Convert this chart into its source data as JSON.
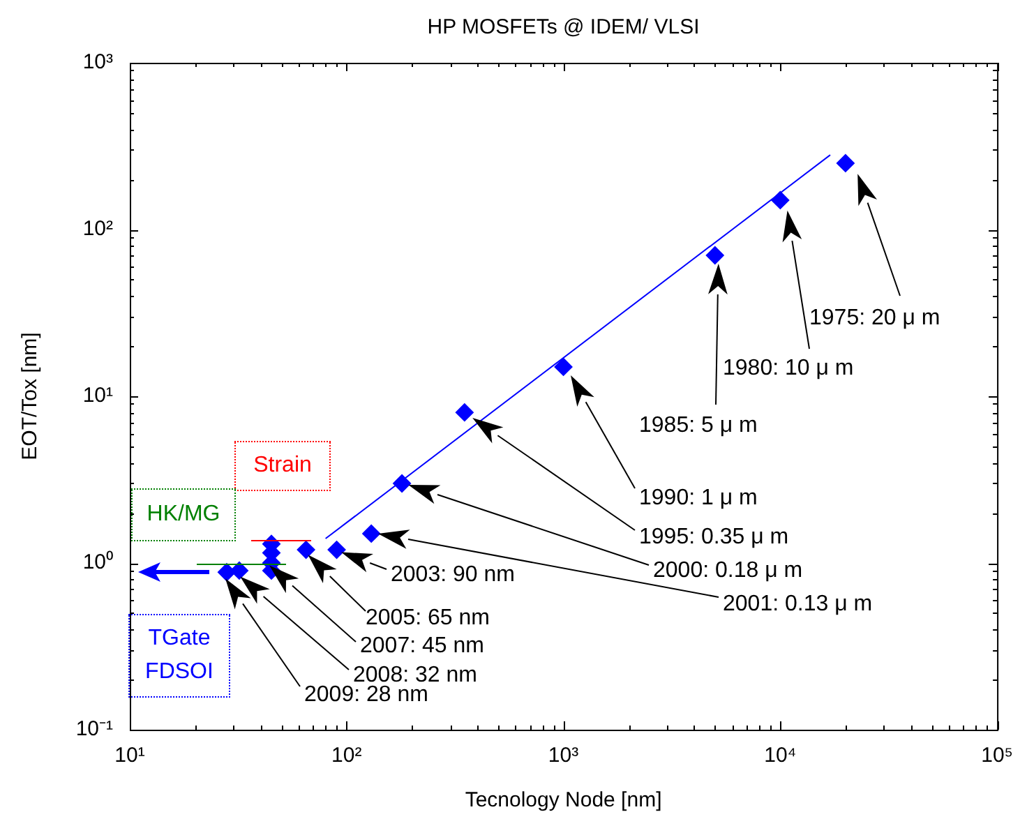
{
  "chart_data": {
    "type": "scatter",
    "title": "HP MOSFETs @ IDEM/ VLSI",
    "xlabel": "Tecnology Node [nm]",
    "ylabel": "EOT/Tox [nm]",
    "log": "xy",
    "marker": "diamond",
    "xlim": [
      10,
      100000
    ],
    "ylim": [
      0.1,
      1000
    ],
    "xticks": [
      {
        "value": 10,
        "label": "10¹"
      },
      {
        "value": 20,
        "label": null
      },
      {
        "value": 30,
        "label": null
      },
      {
        "value": 40,
        "label": null
      },
      {
        "value": 50,
        "label": null
      },
      {
        "value": 60,
        "label": null
      },
      {
        "value": 70,
        "label": null
      },
      {
        "value": 80,
        "label": null
      },
      {
        "value": 90,
        "label": null
      },
      {
        "value": 100,
        "label": "10²"
      },
      {
        "value": 200,
        "label": null
      },
      {
        "value": 300,
        "label": null
      },
      {
        "value": 400,
        "label": null
      },
      {
        "value": 500,
        "label": null
      },
      {
        "value": 600,
        "label": null
      },
      {
        "value": 700,
        "label": null
      },
      {
        "value": 800,
        "label": null
      },
      {
        "value": 900,
        "label": null
      },
      {
        "value": 1000,
        "label": "10³"
      },
      {
        "value": 2000,
        "label": null
      },
      {
        "value": 3000,
        "label": null
      },
      {
        "value": 4000,
        "label": null
      },
      {
        "value": 5000,
        "label": null
      },
      {
        "value": 6000,
        "label": null
      },
      {
        "value": 7000,
        "label": null
      },
      {
        "value": 8000,
        "label": null
      },
      {
        "value": 9000,
        "label": null
      },
      {
        "value": 10000,
        "label": "10⁴"
      },
      {
        "value": 20000,
        "label": null
      },
      {
        "value": 30000,
        "label": null
      },
      {
        "value": 40000,
        "label": null
      },
      {
        "value": 50000,
        "label": null
      },
      {
        "value": 60000,
        "label": null
      },
      {
        "value": 70000,
        "label": null
      },
      {
        "value": 80000,
        "label": null
      },
      {
        "value": 90000,
        "label": null
      },
      {
        "value": 100000,
        "label": "10⁵"
      }
    ],
    "yticks": [
      {
        "value": 0.1,
        "label": "10⁻¹"
      },
      {
        "value": 0.2,
        "label": null
      },
      {
        "value": 0.3,
        "label": null
      },
      {
        "value": 0.4,
        "label": null
      },
      {
        "value": 0.5,
        "label": null
      },
      {
        "value": 0.6,
        "label": null
      },
      {
        "value": 0.7,
        "label": null
      },
      {
        "value": 0.8,
        "label": null
      },
      {
        "value": 0.9,
        "label": null
      },
      {
        "value": 1,
        "label": "10⁰"
      },
      {
        "value": 2,
        "label": null
      },
      {
        "value": 3,
        "label": null
      },
      {
        "value": 4,
        "label": null
      },
      {
        "value": 5,
        "label": null
      },
      {
        "value": 6,
        "label": null
      },
      {
        "value": 7,
        "label": null
      },
      {
        "value": 8,
        "label": null
      },
      {
        "value": 9,
        "label": null
      },
      {
        "value": 10,
        "label": "10¹"
      },
      {
        "value": 20,
        "label": null
      },
      {
        "value": 30,
        "label": null
      },
      {
        "value": 40,
        "label": null
      },
      {
        "value": 50,
        "label": null
      },
      {
        "value": 60,
        "label": null
      },
      {
        "value": 70,
        "label": null
      },
      {
        "value": 80,
        "label": null
      },
      {
        "value": 90,
        "label": null
      },
      {
        "value": 100,
        "label": "10²"
      },
      {
        "value": 200,
        "label": null
      },
      {
        "value": 300,
        "label": null
      },
      {
        "value": 400,
        "label": null
      },
      {
        "value": 500,
        "label": null
      },
      {
        "value": 600,
        "label": null
      },
      {
        "value": 700,
        "label": null
      },
      {
        "value": 800,
        "label": null
      },
      {
        "value": 900,
        "label": null
      },
      {
        "value": 1000,
        "label": "10³"
      }
    ],
    "series": [
      {
        "color": "#0000ff",
        "x": [
          20000,
          10000,
          5000,
          1000,
          350,
          180,
          130,
          90,
          65,
          45,
          45,
          45,
          45,
          32,
          28
        ],
        "values": [
          250,
          150,
          70,
          15,
          8,
          3,
          1.5,
          1.2,
          1.2,
          1.3,
          1.15,
          1,
          0.9,
          0.9,
          0.88
        ]
      },
      {
        "type": "line",
        "color": "#0000ff",
        "marker": "none",
        "x": [
          80,
          17000
        ],
        "values": [
          1.4,
          280
        ]
      }
    ],
    "annotations": [
      "1975: 20 μ m",
      "1980: 10 μ m",
      "1985: 5 μ m",
      "1990: 1 μ m",
      "1995: 0.35 μ m",
      "2000: 0.18 μ m",
      "2001: 0.13 μ m",
      "2003: 90 nm",
      "2005: 65 nm",
      "2007: 45 nm",
      "2008: 32 nm",
      "2009: 28 nm",
      "Strain",
      "HK/MG",
      "TGate FDSOI"
    ]
  }
}
